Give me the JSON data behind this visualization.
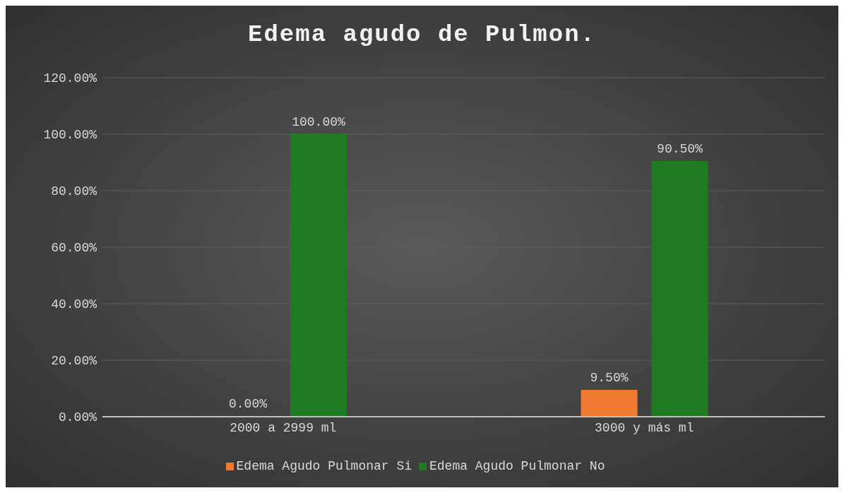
{
  "chart_data": {
    "type": "bar",
    "title": "Edema agudo de Pulmon.",
    "categories": [
      "2000 a 2999 ml",
      "3000 y más ml"
    ],
    "series": [
      {
        "name": "Edema Agudo Pulmonar Si",
        "color": "#f07a30",
        "values": [
          0,
          9.5
        ],
        "value_labels": [
          "0.00%",
          "9.50%"
        ]
      },
      {
        "name": "Edema Agudo Pulmonar No",
        "color": "#1e7b22",
        "values": [
          100,
          90.5
        ],
        "value_labels": [
          "100.00%",
          "90.50%"
        ]
      }
    ],
    "ylim": [
      0,
      120
    ],
    "yticks": [
      {
        "value": 0,
        "label": "0.00%"
      },
      {
        "value": 20,
        "label": "20.00%"
      },
      {
        "value": 40,
        "label": "40.00%"
      },
      {
        "value": 60,
        "label": "60.00%"
      },
      {
        "value": 80,
        "label": "80.00%"
      },
      {
        "value": 100,
        "label": "100.00%"
      },
      {
        "value": 120,
        "label": "120.00%"
      }
    ],
    "grid": "y",
    "legend": "bottom"
  }
}
